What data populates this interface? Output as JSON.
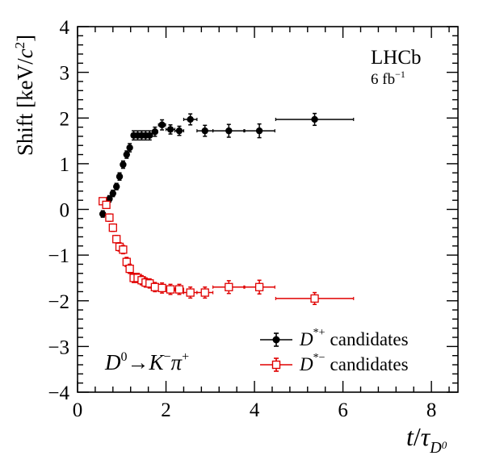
{
  "chart_data": {
    "type": "scatter",
    "ylabel": "Shift [keV/c²]",
    "ylabel_parts": {
      "prefix": "Shift [keV/",
      "c": "c",
      "exp": "2",
      "suffix": "]"
    },
    "xlabel_parts": {
      "t": "t",
      "slash": "/",
      "tau": "τ",
      "sub": "D",
      "subsup": "0"
    },
    "xlim": [
      0,
      8.6
    ],
    "ylim": [
      -4,
      4
    ],
    "xticks": [
      0,
      2,
      4,
      6,
      8
    ],
    "yticks": [
      -4,
      -3,
      -2,
      -1,
      0,
      1,
      2,
      3,
      4
    ],
    "xtick_labels": [
      "0",
      "2",
      "4",
      "6",
      "8"
    ],
    "ytick_labels": [
      "−4",
      "−3",
      "−2",
      "−1",
      "0",
      "1",
      "2",
      "3",
      "4"
    ],
    "experiment_label": {
      "name": "LHCb",
      "lumi_prefix": "6 fb",
      "lumi_exp": "−1"
    },
    "decay_label": {
      "d": "D",
      "d_sup": "0",
      "arrow": "→",
      "k": "K",
      "k_sup": "−",
      "pi": "π",
      "pi_sup": "+"
    },
    "legend": {
      "placement": "bottom-right",
      "entries": [
        {
          "sym": "D",
          "sup": "*+",
          "text": "candidates",
          "color": "#000000",
          "marker": "filled-circle"
        },
        {
          "sym": "D",
          "sup": "*−",
          "text": "candidates",
          "color": "#e00000",
          "marker": "open-square"
        }
      ]
    },
    "series": [
      {
        "color": "#000000",
        "marker": "filled-circle",
        "x": [
          0.57,
          0.72,
          0.8,
          0.88,
          0.95,
          1.03,
          1.11,
          1.18,
          1.27,
          1.36,
          1.45,
          1.54,
          1.63,
          1.75,
          1.91,
          2.1,
          2.3,
          2.55,
          2.88,
          3.42,
          4.11,
          5.36
        ],
        "y": [
          -0.1,
          0.23,
          0.35,
          0.5,
          0.72,
          0.98,
          1.2,
          1.35,
          1.62,
          1.62,
          1.62,
          1.62,
          1.62,
          1.7,
          1.85,
          1.75,
          1.72,
          1.97,
          1.72,
          1.72,
          1.72,
          1.97
        ],
        "xerr": [
          0.06,
          0.04,
          0.04,
          0.04,
          0.04,
          0.04,
          0.04,
          0.04,
          0.05,
          0.05,
          0.05,
          0.05,
          0.05,
          0.06,
          0.08,
          0.1,
          0.1,
          0.15,
          0.18,
          0.36,
          0.35,
          0.88
        ],
        "yerr": [
          0.07,
          0.07,
          0.07,
          0.07,
          0.08,
          0.08,
          0.08,
          0.09,
          0.1,
          0.1,
          0.1,
          0.1,
          0.1,
          0.1,
          0.11,
          0.1,
          0.1,
          0.12,
          0.12,
          0.14,
          0.15,
          0.13
        ]
      },
      {
        "color": "#e00000",
        "marker": "open-square",
        "x": [
          0.57,
          0.65,
          0.72,
          0.8,
          0.88,
          0.95,
          1.03,
          1.11,
          1.18,
          1.27,
          1.36,
          1.45,
          1.54,
          1.63,
          1.75,
          1.91,
          2.1,
          2.3,
          2.55,
          2.88,
          3.42,
          4.11,
          5.36
        ],
        "y": [
          0.18,
          0.1,
          -0.18,
          -0.4,
          -0.65,
          -0.82,
          -0.88,
          -1.15,
          -1.3,
          -1.5,
          -1.5,
          -1.55,
          -1.6,
          -1.62,
          -1.7,
          -1.72,
          -1.75,
          -1.75,
          -1.82,
          -1.82,
          -1.7,
          -1.7,
          -1.95
        ],
        "xerr": [
          0.06,
          0.04,
          0.04,
          0.04,
          0.04,
          0.04,
          0.04,
          0.04,
          0.04,
          0.05,
          0.05,
          0.05,
          0.05,
          0.05,
          0.06,
          0.08,
          0.1,
          0.1,
          0.15,
          0.18,
          0.36,
          0.35,
          0.88
        ],
        "yerr": [
          0.07,
          0.07,
          0.08,
          0.08,
          0.08,
          0.09,
          0.09,
          0.1,
          0.1,
          0.1,
          0.1,
          0.1,
          0.1,
          0.1,
          0.1,
          0.11,
          0.11,
          0.11,
          0.12,
          0.12,
          0.14,
          0.15,
          0.13
        ]
      }
    ]
  }
}
